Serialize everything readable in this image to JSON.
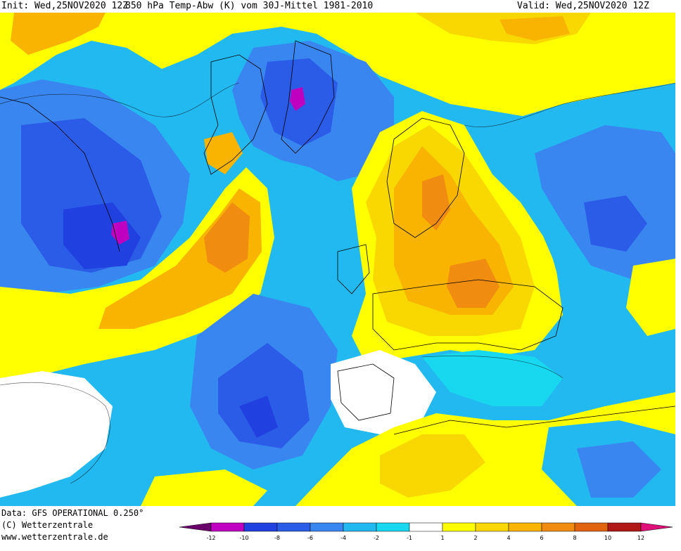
{
  "header": {
    "init": "Init: Wed,25NOV2020 12Z",
    "title": "850 hPa Temp-Abw (K) vom 30J-Mittel 1981-2010",
    "valid": "Valid: Wed,25NOV2020 12Z"
  },
  "footer": {
    "data_source": "Data: GFS OPERATIONAL 0.250°",
    "copyright": "(C) Wetterzentrale",
    "url": "www.wetterzentrale.de"
  },
  "legend": {
    "ticks": [
      "-12",
      "-10",
      "-8",
      "-6",
      "-4",
      "-2",
      "-1",
      "1",
      "2",
      "4",
      "6",
      "8",
      "10",
      "12"
    ],
    "colors": [
      "#c000c0",
      "#2040e0",
      "#2a5ce8",
      "#3a86f0",
      "#22b8f0",
      "#18d8f0",
      "#ffffff",
      "#ffff00",
      "#f8d800",
      "#f8b400",
      "#f08c10",
      "#e06410",
      "#b01818"
    ],
    "low_arrow_color": "#6a006a",
    "high_arrow_color": "#e0107a"
  },
  "colors": {
    "cold_extreme": "#c000c0",
    "very_cold": "#2040e0",
    "cold": "#3a86f0",
    "cool": "#22b8f0",
    "slightly_cool": "#18d8f0",
    "neutral": "#ffffff",
    "slightly_warm": "#ffff00",
    "warm": "#f8d800",
    "warmer": "#f8b400",
    "hot": "#f08c10",
    "very_hot": "#e06410"
  }
}
